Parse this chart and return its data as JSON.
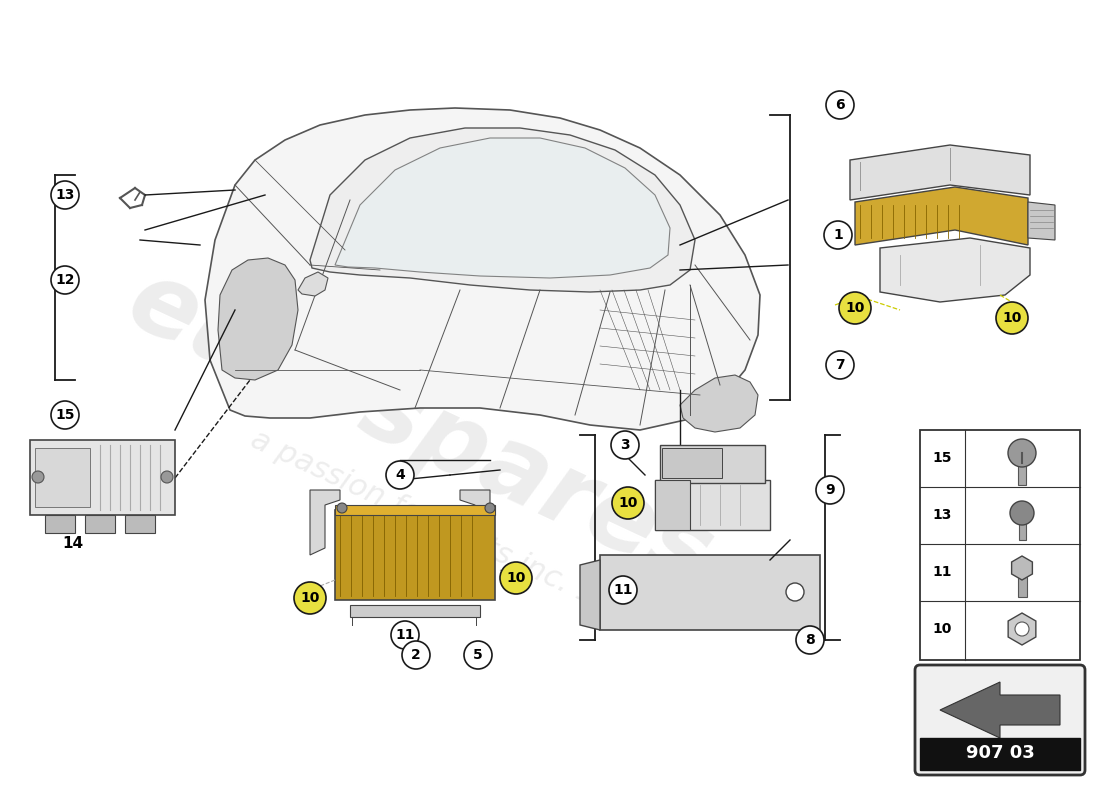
{
  "part_number": "907 03",
  "background_color": "#ffffff",
  "line_color": "#1a1a1a",
  "watermark_color": "#cccccc",
  "watermark_alpha": 0.35,
  "car_line_color": "#555555",
  "car_fill_color": "#f5f5f5",
  "part_fill_light": "#e8e8e8",
  "part_fill_dark": "#cccccc",
  "part_edge": "#444444",
  "yellow_fill": "#e8e040",
  "bracket_lw": 1.3
}
